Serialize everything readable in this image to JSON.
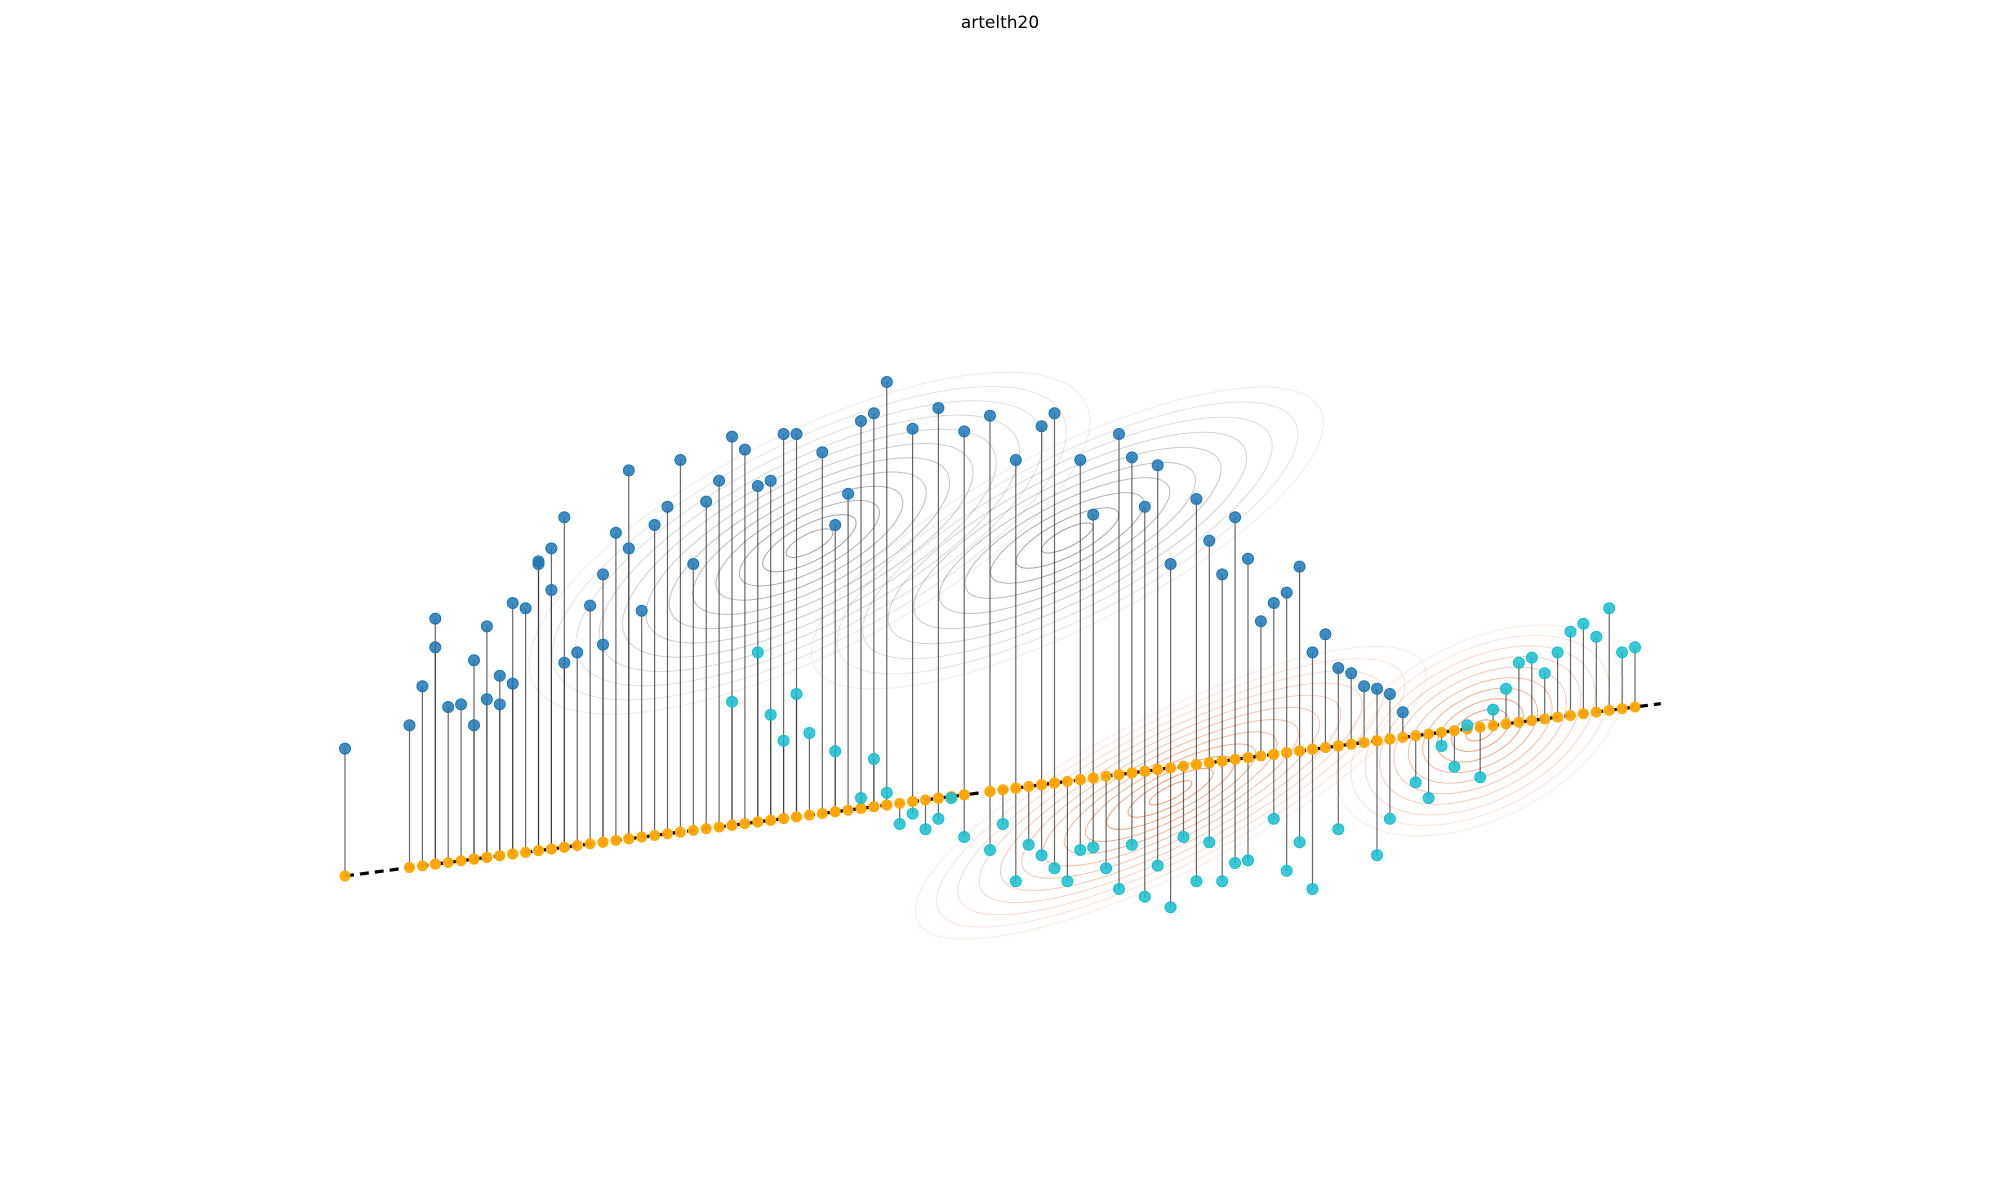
{
  "chart_data": {
    "type": "scatter",
    "title": "artelth20",
    "xlabel": "",
    "ylabel": "",
    "axes_visible": false,
    "grid": false,
    "legend": "none",
    "projection_line": {
      "style": "dashed",
      "color": "#000000"
    },
    "colors": {
      "class_a": "#1f77b4",
      "class_b": "#17becf",
      "projection": "#ffa500",
      "stems": "#333333",
      "contour_a": "#666666",
      "contour_b": "#e05a1a"
    },
    "series": [
      {
        "name": "",
        "color": "#1f77b4",
        "points": [
          [
            0.0,
            0.49
          ],
          [
            0.05,
            0.58
          ],
          [
            0.06,
            0.73
          ],
          [
            0.07,
            0.88
          ],
          [
            0.07,
            0.99
          ],
          [
            0.08,
            0.65
          ],
          [
            0.09,
            0.66
          ],
          [
            0.1,
            0.58
          ],
          [
            0.1,
            0.83
          ],
          [
            0.11,
            0.96
          ],
          [
            0.11,
            0.68
          ],
          [
            0.12,
            0.77
          ],
          [
            0.12,
            0.66
          ],
          [
            0.13,
            1.05
          ],
          [
            0.13,
            0.74
          ],
          [
            0.14,
            1.03
          ],
          [
            0.15,
            1.21
          ],
          [
            0.15,
            1.2
          ],
          [
            0.16,
            1.1
          ],
          [
            0.16,
            1.26
          ],
          [
            0.17,
            0.82
          ],
          [
            0.17,
            1.38
          ],
          [
            0.18,
            0.86
          ],
          [
            0.19,
            1.04
          ],
          [
            0.2,
            1.16
          ],
          [
            0.2,
            0.89
          ],
          [
            0.21,
            1.32
          ],
          [
            0.22,
            1.26
          ],
          [
            0.22,
            1.56
          ],
          [
            0.23,
            1.02
          ],
          [
            0.24,
            1.35
          ],
          [
            0.25,
            1.42
          ],
          [
            0.26,
            1.6
          ],
          [
            0.27,
            1.2
          ],
          [
            0.28,
            1.44
          ],
          [
            0.29,
            1.52
          ],
          [
            0.3,
            1.69
          ],
          [
            0.31,
            1.64
          ],
          [
            0.32,
            1.5
          ],
          [
            0.33,
            1.52
          ],
          [
            0.34,
            1.7
          ],
          [
            0.35,
            1.7
          ],
          [
            0.37,
            1.63
          ],
          [
            0.38,
            1.35
          ],
          [
            0.39,
            1.47
          ],
          [
            0.4,
            1.75
          ],
          [
            0.41,
            1.78
          ],
          [
            0.42,
            1.9
          ],
          [
            0.44,
            1.72
          ],
          [
            0.46,
            1.8
          ],
          [
            0.48,
            1.71
          ],
          [
            0.5,
            1.77
          ],
          [
            0.52,
            1.6
          ],
          [
            0.54,
            1.73
          ],
          [
            0.55,
            1.78
          ],
          [
            0.57,
            1.6
          ],
          [
            0.58,
            1.39
          ],
          [
            0.6,
            1.7
          ],
          [
            0.61,
            1.61
          ],
          [
            0.62,
            1.42
          ],
          [
            0.63,
            1.58
          ],
          [
            0.64,
            1.2
          ],
          [
            0.66,
            1.45
          ],
          [
            0.67,
            1.29
          ],
          [
            0.68,
            1.16
          ],
          [
            0.69,
            1.38
          ],
          [
            0.7,
            1.22
          ],
          [
            0.71,
            0.98
          ],
          [
            0.72,
            1.05
          ],
          [
            0.73,
            1.09
          ],
          [
            0.74,
            1.19
          ],
          [
            0.75,
            0.86
          ],
          [
            0.76,
            0.93
          ],
          [
            0.77,
            0.8
          ],
          [
            0.78,
            0.78
          ],
          [
            0.79,
            0.73
          ],
          [
            0.8,
            0.72
          ],
          [
            0.81,
            0.7
          ],
          [
            0.82,
            0.63
          ]
        ]
      },
      {
        "name": "",
        "color": "#17becf",
        "points": [
          [
            0.3,
            0.67
          ],
          [
            0.32,
            0.86
          ],
          [
            0.33,
            0.62
          ],
          [
            0.34,
            0.52
          ],
          [
            0.35,
            0.7
          ],
          [
            0.36,
            0.55
          ],
          [
            0.38,
            0.48
          ],
          [
            0.4,
            0.3
          ],
          [
            0.41,
            0.45
          ],
          [
            0.42,
            0.32
          ],
          [
            0.43,
            0.2
          ],
          [
            0.44,
            0.24
          ],
          [
            0.45,
            0.18
          ],
          [
            0.46,
            0.22
          ],
          [
            0.47,
            0.3
          ],
          [
            0.48,
            0.15
          ],
          [
            0.5,
            0.1
          ],
          [
            0.51,
            0.2
          ],
          [
            0.52,
            -0.02
          ],
          [
            0.53,
            0.12
          ],
          [
            0.54,
            0.08
          ],
          [
            0.55,
            0.03
          ],
          [
            0.56,
            -0.02
          ],
          [
            0.57,
            0.1
          ],
          [
            0.58,
            0.11
          ],
          [
            0.59,
            0.03
          ],
          [
            0.6,
            -0.05
          ],
          [
            0.61,
            0.12
          ],
          [
            0.62,
            -0.08
          ],
          [
            0.63,
            0.04
          ],
          [
            0.64,
            -0.12
          ],
          [
            0.65,
            0.15
          ],
          [
            0.66,
            -0.02
          ],
          [
            0.67,
            0.13
          ],
          [
            0.68,
            -0.02
          ],
          [
            0.69,
            0.05
          ],
          [
            0.7,
            0.06
          ],
          [
            0.72,
            0.22
          ],
          [
            0.73,
            0.02
          ],
          [
            0.74,
            0.13
          ],
          [
            0.75,
            -0.05
          ],
          [
            0.77,
            0.18
          ],
          [
            0.8,
            0.08
          ],
          [
            0.81,
            0.22
          ],
          [
            0.83,
            0.36
          ],
          [
            0.84,
            0.3
          ],
          [
            0.85,
            0.5
          ],
          [
            0.86,
            0.42
          ],
          [
            0.87,
            0.58
          ],
          [
            0.88,
            0.38
          ],
          [
            0.89,
            0.64
          ],
          [
            0.9,
            0.72
          ],
          [
            0.91,
            0.82
          ],
          [
            0.92,
            0.84
          ],
          [
            0.93,
            0.78
          ],
          [
            0.94,
            0.86
          ],
          [
            0.95,
            0.94
          ],
          [
            0.96,
            0.97
          ],
          [
            0.97,
            0.92
          ],
          [
            0.98,
            1.03
          ],
          [
            0.99,
            0.86
          ],
          [
            1.0,
            0.88
          ]
        ]
      }
    ],
    "contours": [
      {
        "color": "#666666",
        "center": [
          0.36,
          1.28
        ],
        "spread": [
          0.24,
          0.42
        ],
        "levels": 12
      },
      {
        "color": "#666666",
        "center": [
          0.56,
          1.3
        ],
        "spread": [
          0.22,
          0.34
        ],
        "levels": 10
      },
      {
        "color": "#e05a1a",
        "center": [
          0.64,
          0.32
        ],
        "spread": [
          0.22,
          0.3
        ],
        "levels": 12
      },
      {
        "color": "#e05a1a",
        "center": [
          0.88,
          0.56
        ],
        "spread": [
          0.12,
          0.34
        ],
        "levels": 10
      }
    ]
  }
}
